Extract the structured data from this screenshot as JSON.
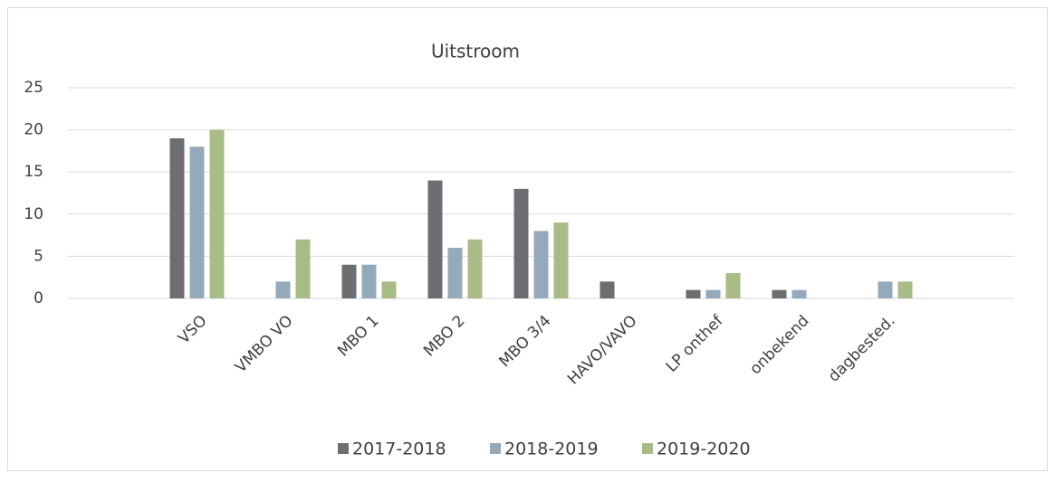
{
  "chart_data": {
    "type": "bar",
    "title": "Uitstroom",
    "categories": [
      null,
      "VSO",
      "VMBO VO",
      "MBO 1",
      "MBO 2",
      "MBO 3/4",
      "HAVO/VAVO",
      "LP onthef",
      "onbekend",
      "dagbested.",
      null
    ],
    "series": [
      {
        "name": "2017-2018",
        "color": "#6d6e71",
        "values": [
          null,
          19,
          0,
          4,
          14,
          13,
          2,
          1,
          1,
          0,
          null
        ]
      },
      {
        "name": "2018-2019",
        "color": "#94aabb",
        "values": [
          null,
          18,
          2,
          4,
          6,
          8,
          0,
          1,
          1,
          2,
          null
        ]
      },
      {
        "name": "2019-2020",
        "color": "#a9bb87",
        "values": [
          null,
          20,
          7,
          2,
          7,
          9,
          0,
          3,
          0,
          2,
          null
        ]
      }
    ],
    "ylim": [
      0,
      25
    ],
    "yticks": [
      0,
      5,
      10,
      15,
      20,
      25
    ],
    "grid": true,
    "legend": "bottom"
  }
}
